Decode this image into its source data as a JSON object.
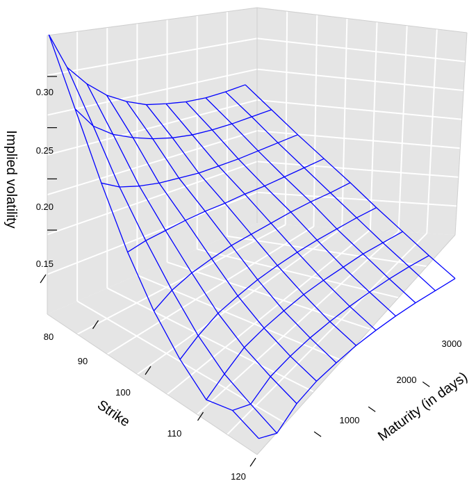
{
  "chart_data": {
    "type": "surface",
    "zlabel": "Implied volatility",
    "xlabel": "Strike",
    "ylabel": "Maturity (in days)",
    "strike_ticks": [
      "80",
      "90",
      "100",
      "110",
      "120"
    ],
    "maturity_ticks": [
      "1000",
      "2000",
      "3000"
    ],
    "vol_ticks": [
      "0.15",
      "0.20",
      "0.25",
      "0.30"
    ],
    "strike_range": [
      80,
      120
    ],
    "maturity_range": [
      0,
      3650
    ],
    "vol_range": [
      0.11,
      0.34
    ],
    "mesh_color": "#0000ff",
    "box_color": "#e5e5e5",
    "grid_color": "#ffffff",
    "surface": {
      "strikes": [
        80,
        85,
        90,
        95,
        100,
        105,
        110,
        115,
        120
      ],
      "maturities": [
        30,
        365,
        730,
        1095,
        1460,
        1825,
        2190,
        2555,
        2920,
        3285,
        3650
      ],
      "vol": [
        [
          0.34,
          0.3,
          0.275,
          0.255,
          0.24,
          0.228,
          0.22,
          0.213,
          0.208,
          0.205,
          0.203
        ],
        [
          0.29,
          0.265,
          0.248,
          0.236,
          0.226,
          0.218,
          0.212,
          0.208,
          0.205,
          0.203,
          0.201
        ],
        [
          0.24,
          0.228,
          0.22,
          0.214,
          0.21,
          0.206,
          0.204,
          0.202,
          0.201,
          0.2,
          0.199
        ],
        [
          0.195,
          0.198,
          0.199,
          0.2,
          0.2,
          0.199,
          0.199,
          0.198,
          0.198,
          0.198,
          0.198
        ],
        [
          0.16,
          0.172,
          0.18,
          0.185,
          0.189,
          0.191,
          0.193,
          0.195,
          0.196,
          0.196,
          0.197
        ],
        [
          0.135,
          0.15,
          0.163,
          0.171,
          0.178,
          0.183,
          0.187,
          0.19,
          0.192,
          0.194,
          0.195
        ],
        [
          0.118,
          0.135,
          0.152,
          0.162,
          0.17,
          0.177,
          0.182,
          0.186,
          0.19,
          0.192,
          0.194
        ],
        [
          0.13,
          0.128,
          0.146,
          0.157,
          0.166,
          0.173,
          0.179,
          0.184,
          0.188,
          0.191,
          0.193
        ],
        [
          0.125,
          0.122,
          0.142,
          0.155,
          0.164,
          0.172,
          0.178,
          0.183,
          0.187,
          0.19,
          0.193
        ]
      ]
    }
  }
}
